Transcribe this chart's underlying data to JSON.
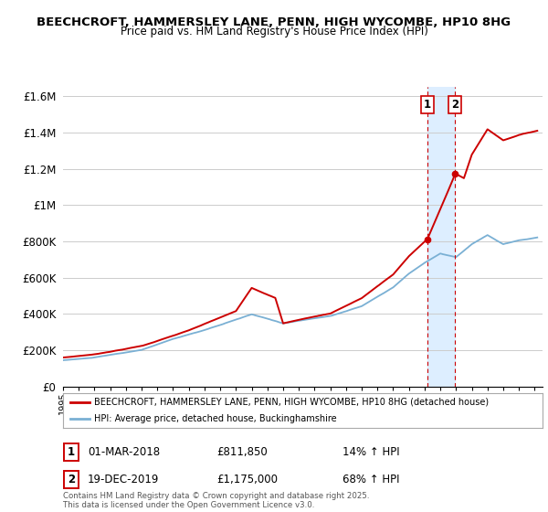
{
  "title1": "BEECHCROFT, HAMMERSLEY LANE, PENN, HIGH WYCOMBE, HP10 8HG",
  "title2": "Price paid vs. HM Land Registry's House Price Index (HPI)",
  "legend_label1": "BEECHCROFT, HAMMERSLEY LANE, PENN, HIGH WYCOMBE, HP10 8HG (detached house)",
  "legend_label2": "HPI: Average price, detached house, Buckinghamshire",
  "line1_color": "#cc0000",
  "line2_color": "#7ab0d4",
  "marker1_label": "01-MAR-2018",
  "marker1_price": 811850,
  "marker1_price_str": "£811,850",
  "marker1_hpi": "14% ↑ HPI",
  "marker1_t": 2018.167,
  "marker2_label": "19-DEC-2019",
  "marker2_price": 1175000,
  "marker2_price_str": "£1,175,000",
  "marker2_hpi": "68% ↑ HPI",
  "marker2_t": 2019.958,
  "footer": "Contains HM Land Registry data © Crown copyright and database right 2025.\nThis data is licensed under the Open Government Licence v3.0.",
  "ylim": [
    0,
    1650000
  ],
  "yticks": [
    0,
    200000,
    400000,
    600000,
    800000,
    1000000,
    1200000,
    1400000,
    1600000
  ],
  "ytick_labels": [
    "£0",
    "£200K",
    "£400K",
    "£600K",
    "£800K",
    "£1M",
    "£1.2M",
    "£1.4M",
    "£1.6M"
  ],
  "background_color": "#ffffff",
  "grid_color": "#cccccc",
  "highlight_color": "#ddeeff",
  "xmin": 1995.0,
  "xmax": 2025.5
}
